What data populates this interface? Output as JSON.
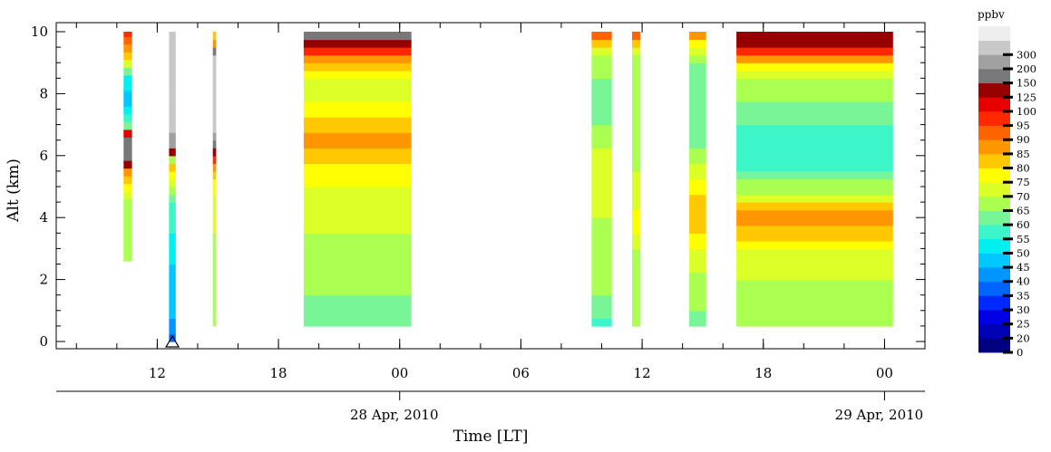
{
  "chart_data": {
    "type": "heatmap",
    "xlabel": "Time [LT]",
    "ylabel": "Alt (km)",
    "ylim": [
      0,
      10
    ],
    "xlim": [
      "2010-04-27T07:00",
      "2010-04-29T02:00"
    ],
    "y_ticks": [
      0,
      2,
      4,
      6,
      8,
      10
    ],
    "x_ticks": [
      {
        "t": "2010-04-27T12:00",
        "label": "12"
      },
      {
        "t": "2010-04-27T18:00",
        "label": "18"
      },
      {
        "t": "2010-04-28T00:00",
        "label": "00"
      },
      {
        "t": "2010-04-28T06:00",
        "label": "06"
      },
      {
        "t": "2010-04-28T12:00",
        "label": "12"
      },
      {
        "t": "2010-04-28T18:00",
        "label": "18"
      },
      {
        "t": "2010-04-29T00:00",
        "label": "00"
      }
    ],
    "date_labels": [
      {
        "t": "2010-04-28T00:00",
        "label": "28 Apr, 2010"
      },
      {
        "t": "2010-04-29T00:00",
        "label": "29 Apr, 2010"
      }
    ],
    "marker": {
      "t": "2010-04-27T12:45",
      "alt": 0,
      "shape": "triangle-open"
    },
    "colorbar": {
      "label": "ppbv",
      "levels": [
        0,
        20,
        25,
        30,
        35,
        40,
        45,
        50,
        55,
        60,
        65,
        70,
        75,
        80,
        85,
        90,
        95,
        100,
        125,
        150,
        200,
        300
      ],
      "tick_labels": [
        "0",
        "20",
        "25",
        "30",
        "35",
        "40",
        "45",
        "50",
        "55",
        "60",
        "65",
        "70",
        "75",
        "80",
        "85",
        "90",
        "95",
        "100",
        "125",
        "150",
        "200",
        "300"
      ],
      "colors": [
        "#000080",
        "#0000b4",
        "#0000e6",
        "#0028ff",
        "#0064ff",
        "#0096ff",
        "#00c8ff",
        "#00f0f0",
        "#3cf5c8",
        "#78f596",
        "#aaff50",
        "#dcff28",
        "#ffff00",
        "#ffc800",
        "#ff9600",
        "#ff6400",
        "#ff2800",
        "#e60000",
        "#960000",
        "#787878",
        "#a0a0a0",
        "#c8c8c8",
        "#eeeeee"
      ]
    },
    "profiles": [
      {
        "start": "2010-04-27T10:20",
        "end": "2010-04-27T10:45",
        "alts": [
          2.6,
          3.0,
          4.0,
          4.5,
          5.0,
          5.5,
          5.8,
          6.0,
          6.5,
          7.0,
          7.5,
          8.0,
          8.5,
          9.0,
          9.5,
          10.0
        ],
        "ozone": [
          62,
          63,
          62,
          65,
          72,
          85,
          110,
          130,
          130,
          55,
          45,
          42,
          50,
          70,
          85,
          95
        ]
      },
      {
        "start": "2010-04-27T12:35",
        "end": "2010-04-27T12:55",
        "alts": [
          0,
          0.5,
          1.0,
          1.5,
          2.0,
          2.5,
          3.0,
          3.5,
          4.0,
          4.5,
          5.0,
          5.3,
          5.6,
          5.9,
          6.1,
          6.3,
          6.6,
          7.0,
          8.0,
          9.0,
          10.0
        ],
        "ozone": [
          32,
          38,
          42,
          45,
          42,
          45,
          48,
          50,
          52,
          55,
          65,
          72,
          80,
          60,
          110,
          140,
          180,
          250,
          250,
          250,
          250
        ]
      },
      {
        "start": "2010-04-27T14:45",
        "end": "2010-04-27T14:55",
        "alts": [
          0.5,
          1.0,
          2.0,
          3.0,
          4.0,
          5.0,
          5.5,
          6.0,
          6.3,
          7.0,
          8.0,
          9.0,
          9.5,
          10.0
        ],
        "ozone": [
          62,
          62,
          63,
          64,
          66,
          72,
          80,
          95,
          110,
          250,
          250,
          250,
          85,
          75
        ]
      },
      {
        "start": "2010-04-27T19:15",
        "end": "2010-04-28T00:35",
        "alts": [
          0.5,
          1.0,
          1.5,
          2.0,
          2.5,
          3.0,
          3.5,
          4.0,
          4.5,
          5.0,
          5.5,
          6.0,
          6.5,
          7.0,
          7.5,
          8.0,
          8.5,
          9.0,
          9.5,
          10.0
        ],
        "ozone": [
          55,
          58,
          60,
          62,
          63,
          64,
          65,
          66,
          67,
          70,
          72,
          76,
          82,
          78,
          72,
          68,
          70,
          80,
          98,
          140
        ]
      },
      {
        "start": "2010-04-28T09:30",
        "end": "2010-04-28T10:30",
        "alts": [
          0.5,
          1.0,
          2.0,
          3.0,
          4.0,
          4.5,
          5.0,
          6.0,
          7.0,
          8.0,
          9.0,
          9.5,
          10.0
        ],
        "ozone": [
          48,
          58,
          62,
          63,
          65,
          68,
          70,
          67,
          60,
          57,
          62,
          72,
          90
        ]
      },
      {
        "start": "2010-04-28T11:30",
        "end": "2010-04-28T11:55",
        "alts": [
          0.5,
          1.0,
          2.0,
          3.0,
          4.0,
          4.5,
          5.0,
          6.0,
          7.0,
          8.0,
          9.0,
          9.5,
          10.0
        ],
        "ozone": [
          62,
          62,
          63,
          64,
          75,
          68,
          66,
          64,
          62,
          60,
          62,
          70,
          95
        ]
      },
      {
        "start": "2010-04-28T14:20",
        "end": "2010-04-28T15:10",
        "alts": [
          0.5,
          1.0,
          2.0,
          3.0,
          3.5,
          4.0,
          4.5,
          5.0,
          6.0,
          7.0,
          8.0,
          9.0,
          9.5,
          10.0
        ],
        "ozone": [
          58,
          60,
          63,
          70,
          75,
          78,
          80,
          72,
          62,
          55,
          58,
          60,
          70,
          85
        ]
      },
      {
        "start": "2010-04-28T16:40",
        "end": "2010-04-29T00:25",
        "alts": [
          0.5,
          1.0,
          1.5,
          2.0,
          2.5,
          3.0,
          3.5,
          4.0,
          4.5,
          5.0,
          5.5,
          6.0,
          6.5,
          7.0,
          7.5,
          8.0,
          8.5,
          9.0,
          9.5,
          10.0
        ],
        "ozone": [
          62,
          62,
          64,
          65,
          66,
          70,
          78,
          85,
          72,
          62,
          55,
          50,
          50,
          54,
          58,
          62,
          65,
          75,
          95,
          125
        ]
      }
    ]
  }
}
